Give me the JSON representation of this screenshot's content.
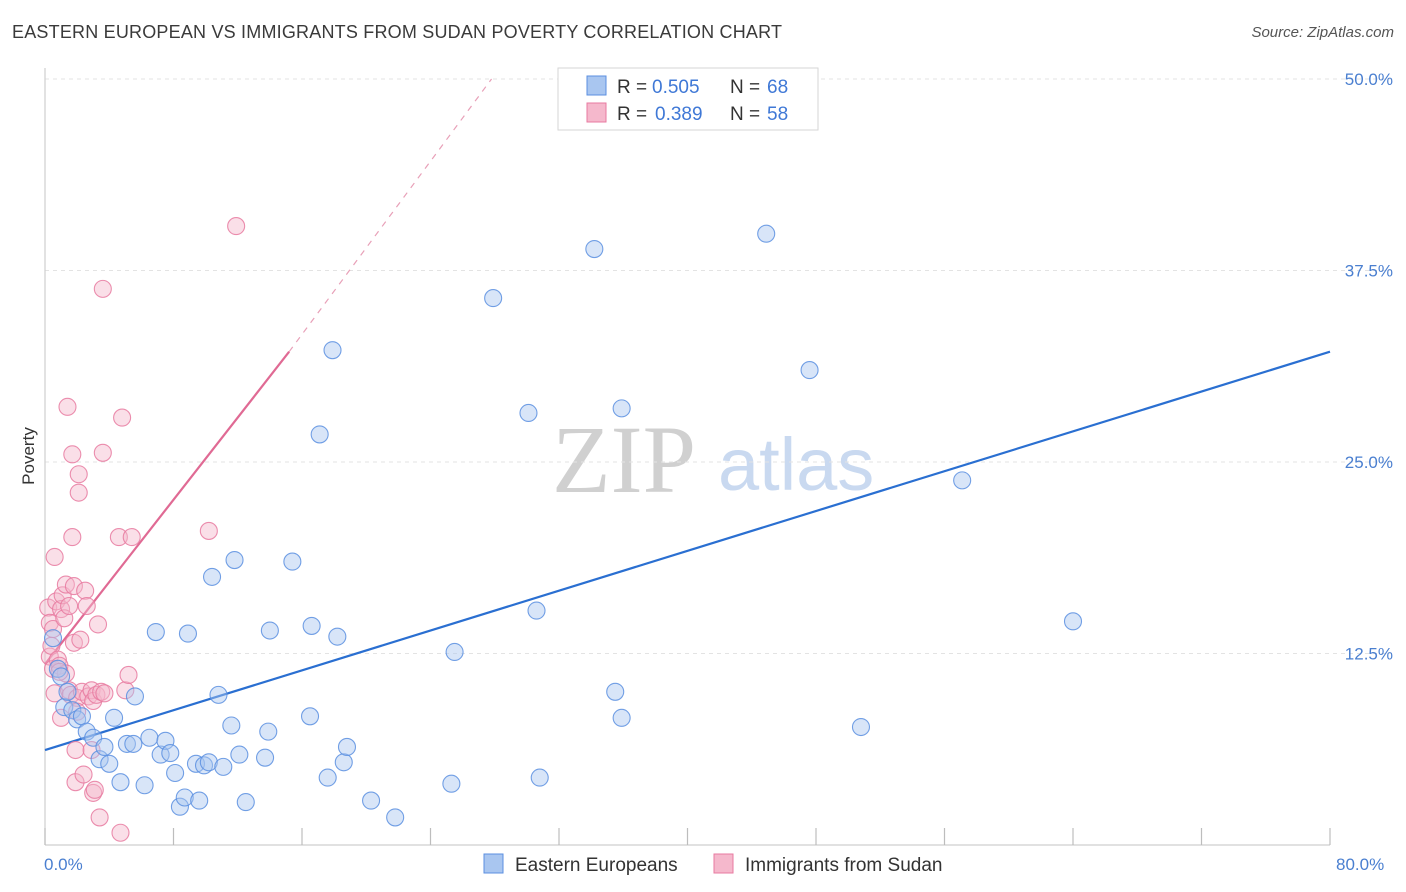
{
  "header": {
    "title": "EASTERN EUROPEAN VS IMMIGRANTS FROM SUDAN POVERTY CORRELATION CHART",
    "source": "Source: ZipAtlas.com"
  },
  "watermark": {
    "zip": "ZIP",
    "atlas": "atlas"
  },
  "legend": {
    "r_label": "R =",
    "n_label": "N =",
    "entries": [
      {
        "r": "0.505",
        "n": "68"
      },
      {
        "r": "0.389",
        "n": "58"
      }
    ]
  },
  "chart_data": {
    "type": "scatter",
    "title": "EASTERN EUROPEAN VS IMMIGRANTS FROM SUDAN POVERTY CORRELATION CHART",
    "xlabel": "",
    "ylabel": "Poverty",
    "xlim": [
      0,
      80
    ],
    "ylim": [
      0,
      52
    ],
    "x_tick_labels": [
      "0.0%",
      "80.0%"
    ],
    "y_ticks": [
      12.5,
      25.0,
      37.5,
      50.0
    ],
    "y_tick_labels": [
      "12.5%",
      "25.0%",
      "37.5%",
      "50.0%"
    ],
    "grid": true,
    "colors": {
      "blue": "#5b8fe0",
      "blue_fill": "#a9c6f0",
      "blue_line": "#2a6fd1",
      "pink": "#e87aa0",
      "pink_fill": "#f5b8cc",
      "pink_line": "#e06a94"
    },
    "series": [
      {
        "name": "Eastern Europeans",
        "trend": {
          "x0": 0,
          "y0": 6.2,
          "x1": 80,
          "y1": 32.2
        },
        "points": [
          [
            0.5,
            13.5
          ],
          [
            0.8,
            11.5
          ],
          [
            1.0,
            11.0
          ],
          [
            1.2,
            9.0
          ],
          [
            1.4,
            10.0
          ],
          [
            1.7,
            8.8
          ],
          [
            2.0,
            8.2
          ],
          [
            2.3,
            8.4
          ],
          [
            2.6,
            7.4
          ],
          [
            3.0,
            7.0
          ],
          [
            3.4,
            5.6
          ],
          [
            3.7,
            6.4
          ],
          [
            4.0,
            5.3
          ],
          [
            4.3,
            8.3
          ],
          [
            4.7,
            4.1
          ],
          [
            5.1,
            6.6
          ],
          [
            5.5,
            6.6
          ],
          [
            5.6,
            9.7
          ],
          [
            6.2,
            3.9
          ],
          [
            6.5,
            7.0
          ],
          [
            6.9,
            13.9
          ],
          [
            7.2,
            5.9
          ],
          [
            7.5,
            6.8
          ],
          [
            7.8,
            6.0
          ],
          [
            8.1,
            4.7
          ],
          [
            8.4,
            2.5
          ],
          [
            8.7,
            3.1
          ],
          [
            8.9,
            13.8
          ],
          [
            9.4,
            5.3
          ],
          [
            9.6,
            2.9
          ],
          [
            9.9,
            5.2
          ],
          [
            10.2,
            5.4
          ],
          [
            10.4,
            17.5
          ],
          [
            10.8,
            9.8
          ],
          [
            11.1,
            5.1
          ],
          [
            11.6,
            7.8
          ],
          [
            11.8,
            18.6
          ],
          [
            12.1,
            5.9
          ],
          [
            12.5,
            2.8
          ],
          [
            13.7,
            5.7
          ],
          [
            13.9,
            7.4
          ],
          [
            14.0,
            14.0
          ],
          [
            15.4,
            18.5
          ],
          [
            16.5,
            8.4
          ],
          [
            16.6,
            14.3
          ],
          [
            17.1,
            26.8
          ],
          [
            17.6,
            4.4
          ],
          [
            17.9,
            32.3
          ],
          [
            18.2,
            13.6
          ],
          [
            18.6,
            5.4
          ],
          [
            18.8,
            6.4
          ],
          [
            20.3,
            2.9
          ],
          [
            21.8,
            1.8
          ],
          [
            25.3,
            4.0
          ],
          [
            25.5,
            12.6
          ],
          [
            27.9,
            35.7
          ],
          [
            30.1,
            28.2
          ],
          [
            30.6,
            15.3
          ],
          [
            30.8,
            4.4
          ],
          [
            34.2,
            38.9
          ],
          [
            35.5,
            10.0
          ],
          [
            35.9,
            8.3
          ],
          [
            35.9,
            28.5
          ],
          [
            44.9,
            39.9
          ],
          [
            47.6,
            31.0
          ],
          [
            50.8,
            7.7
          ],
          [
            57.1,
            23.8
          ],
          [
            64.0,
            14.6
          ]
        ]
      },
      {
        "name": "Immigrants from Sudan",
        "trend": {
          "x0": 0,
          "y0": 11.8,
          "x1": 15.2,
          "y1": 32.2,
          "dash_x1": 27.8,
          "dash_y1": 50.0
        },
        "points": [
          [
            0.2,
            15.5
          ],
          [
            0.3,
            14.5
          ],
          [
            0.3,
            12.3
          ],
          [
            0.4,
            13.0
          ],
          [
            0.5,
            14.1
          ],
          [
            0.5,
            11.5
          ],
          [
            0.6,
            18.8
          ],
          [
            0.6,
            9.9
          ],
          [
            0.7,
            15.9
          ],
          [
            0.8,
            12.1
          ],
          [
            0.9,
            11.7
          ],
          [
            1.0,
            15.4
          ],
          [
            1.0,
            8.3
          ],
          [
            1.1,
            16.3
          ],
          [
            1.2,
            14.8
          ],
          [
            1.3,
            17.0
          ],
          [
            1.3,
            11.2
          ],
          [
            1.4,
            28.6
          ],
          [
            1.5,
            15.6
          ],
          [
            1.5,
            10.1
          ],
          [
            1.6,
            9.8
          ],
          [
            1.7,
            20.1
          ],
          [
            1.7,
            25.5
          ],
          [
            1.8,
            16.9
          ],
          [
            1.8,
            13.2
          ],
          [
            1.9,
            6.2
          ],
          [
            1.9,
            4.1
          ],
          [
            2.0,
            9.6
          ],
          [
            2.0,
            8.7
          ],
          [
            2.1,
            23.0
          ],
          [
            2.1,
            24.2
          ],
          [
            2.2,
            13.4
          ],
          [
            2.3,
            10.0
          ],
          [
            2.4,
            4.6
          ],
          [
            2.5,
            16.6
          ],
          [
            2.6,
            15.6
          ],
          [
            2.7,
            9.7
          ],
          [
            2.9,
            10.1
          ],
          [
            2.9,
            6.2
          ],
          [
            3.0,
            9.4
          ],
          [
            3.0,
            3.4
          ],
          [
            3.1,
            3.6
          ],
          [
            3.2,
            9.8
          ],
          [
            3.3,
            14.4
          ],
          [
            3.4,
            1.8
          ],
          [
            3.5,
            10.0
          ],
          [
            3.6,
            36.3
          ],
          [
            3.6,
            25.6
          ],
          [
            3.7,
            9.9
          ],
          [
            4.6,
            20.1
          ],
          [
            4.7,
            0.8
          ],
          [
            4.8,
            27.9
          ],
          [
            5.0,
            10.1
          ],
          [
            5.2,
            11.1
          ],
          [
            5.4,
            20.1
          ],
          [
            10.2,
            20.5
          ],
          [
            11.9,
            40.4
          ],
          [
            0.9,
            11.3
          ]
        ]
      }
    ]
  }
}
